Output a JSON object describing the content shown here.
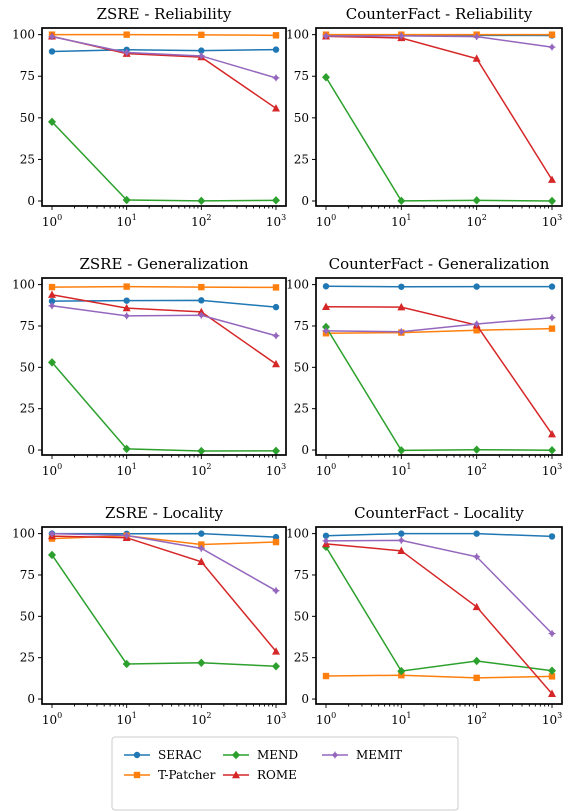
{
  "legend": {
    "entries": [
      {
        "name": "SERAC",
        "color": "#1f77b4",
        "marker": "circle"
      },
      {
        "name": "T-Patcher",
        "color": "#ff7f0e",
        "marker": "square"
      },
      {
        "name": "MEND",
        "color": "#2ca02c",
        "marker": "diamond"
      },
      {
        "name": "ROME",
        "color": "#d62728",
        "marker": "triangle"
      },
      {
        "name": "MEMIT",
        "color": "#9467bd",
        "marker": "star"
      }
    ]
  },
  "chart_data": [
    {
      "type": "line",
      "title": "ZSRE - Reliability",
      "x": [
        1,
        10,
        100,
        1000
      ],
      "x_tick_labels": [
        "10^0",
        "10^1",
        "10^2",
        "10^3"
      ],
      "xscale": "log",
      "ylim": [
        -3,
        104
      ],
      "yticks": [
        0,
        25,
        50,
        75,
        100
      ],
      "series": [
        {
          "name": "SERAC",
          "values": [
            89.9,
            90.9,
            90.4,
            91.0
          ]
        },
        {
          "name": "T-Patcher",
          "values": [
            100.0,
            100.0,
            99.9,
            99.6
          ]
        },
        {
          "name": "MEND",
          "values": [
            47.6,
            0.6,
            0.1,
            0.4
          ]
        },
        {
          "name": "ROME",
          "values": [
            99.0,
            88.6,
            86.5,
            55.7
          ]
        },
        {
          "name": "MEMIT",
          "values": [
            98.8,
            89.3,
            87.2,
            74.0
          ]
        }
      ]
    },
    {
      "type": "line",
      "title": "CounterFact - Reliability",
      "x": [
        1,
        10,
        100,
        1000
      ],
      "x_tick_labels": [
        "10^0",
        "10^1",
        "10^2",
        "10^3"
      ],
      "xscale": "log",
      "ylim": [
        -3,
        104
      ],
      "yticks": [
        0,
        25,
        50,
        75,
        100
      ],
      "series": [
        {
          "name": "SERAC",
          "values": [
            99.8,
            99.6,
            99.6,
            99.5
          ]
        },
        {
          "name": "T-Patcher",
          "values": [
            100.0,
            100.0,
            100.0,
            100.0
          ]
        },
        {
          "name": "MEND",
          "values": [
            74.4,
            0.1,
            0.4,
            0.0
          ]
        },
        {
          "name": "ROME",
          "values": [
            99.0,
            98.0,
            85.6,
            12.8
          ]
        },
        {
          "name": "MEMIT",
          "values": [
            99.2,
            99.3,
            98.8,
            92.5
          ]
        }
      ]
    },
    {
      "type": "line",
      "title": "ZSRE - Generalization",
      "x": [
        1,
        10,
        100,
        1000
      ],
      "x_tick_labels": [
        "10^0",
        "10^1",
        "10^2",
        "10^3"
      ],
      "xscale": "log",
      "ylim": [
        -3,
        104
      ],
      "yticks": [
        0,
        25,
        50,
        75,
        100
      ],
      "series": [
        {
          "name": "SERAC",
          "values": [
            90.0,
            90.3,
            90.5,
            86.4
          ]
        },
        {
          "name": "T-Patcher",
          "values": [
            98.5,
            98.8,
            98.5,
            98.3
          ]
        },
        {
          "name": "MEND",
          "values": [
            53.0,
            0.7,
            -0.6,
            -0.5
          ]
        },
        {
          "name": "ROME",
          "values": [
            93.9,
            85.8,
            83.5,
            52.0
          ]
        },
        {
          "name": "MEMIT",
          "values": [
            87.2,
            81.1,
            81.5,
            69.1
          ]
        }
      ]
    },
    {
      "type": "line",
      "title": "CounterFact - Generalization",
      "x": [
        1,
        10,
        100,
        1000
      ],
      "x_tick_labels": [
        "10^0",
        "10^1",
        "10^2",
        "10^3"
      ],
      "xscale": "log",
      "ylim": [
        -3,
        104
      ],
      "yticks": [
        0,
        25,
        50,
        75,
        100
      ],
      "series": [
        {
          "name": "SERAC",
          "values": [
            99.0,
            98.7,
            98.8,
            98.8
          ]
        },
        {
          "name": "T-Patcher",
          "values": [
            70.6,
            71.0,
            72.4,
            73.4
          ]
        },
        {
          "name": "MEND",
          "values": [
            74.4,
            -0.2,
            0.2,
            -0.1
          ]
        },
        {
          "name": "ROME",
          "values": [
            86.6,
            86.4,
            75.5,
            9.6
          ]
        },
        {
          "name": "MEMIT",
          "values": [
            72.0,
            71.5,
            76.2,
            80.0
          ]
        }
      ]
    },
    {
      "type": "line",
      "title": "ZSRE - Locality",
      "x": [
        1,
        10,
        100,
        1000
      ],
      "x_tick_labels": [
        "10^0",
        "10^1",
        "10^2",
        "10^3"
      ],
      "xscale": "log",
      "ylim": [
        -3,
        104
      ],
      "yticks": [
        0,
        25,
        50,
        75,
        100
      ],
      "series": [
        {
          "name": "SERAC",
          "values": [
            100.0,
            99.9,
            100.0,
            97.9
          ]
        },
        {
          "name": "T-Patcher",
          "values": [
            97.0,
            98.7,
            93.4,
            94.9
          ]
        },
        {
          "name": "MEND",
          "values": [
            87.1,
            21.2,
            21.9,
            19.8
          ]
        },
        {
          "name": "ROME",
          "values": [
            98.5,
            97.5,
            83.0,
            28.8
          ]
        },
        {
          "name": "MEMIT",
          "values": [
            100.0,
            98.9,
            91.1,
            65.5
          ]
        }
      ]
    },
    {
      "type": "line",
      "title": "CounterFact - Locality",
      "x": [
        1,
        10,
        100,
        1000
      ],
      "x_tick_labels": [
        "10^0",
        "10^1",
        "10^2",
        "10^3"
      ],
      "xscale": "log",
      "ylim": [
        -3,
        104
      ],
      "yticks": [
        0,
        25,
        50,
        75,
        100
      ],
      "series": [
        {
          "name": "SERAC",
          "values": [
            98.7,
            100.0,
            100.0,
            98.3
          ]
        },
        {
          "name": "T-Patcher",
          "values": [
            13.9,
            14.4,
            12.8,
            13.7
          ]
        },
        {
          "name": "MEND",
          "values": [
            92.0,
            16.9,
            23.0,
            17.1
          ]
        },
        {
          "name": "ROME",
          "values": [
            93.8,
            89.6,
            55.7,
            3.2
          ]
        },
        {
          "name": "MEMIT",
          "values": [
            95.6,
            95.9,
            86.0,
            39.6
          ]
        }
      ]
    }
  ]
}
